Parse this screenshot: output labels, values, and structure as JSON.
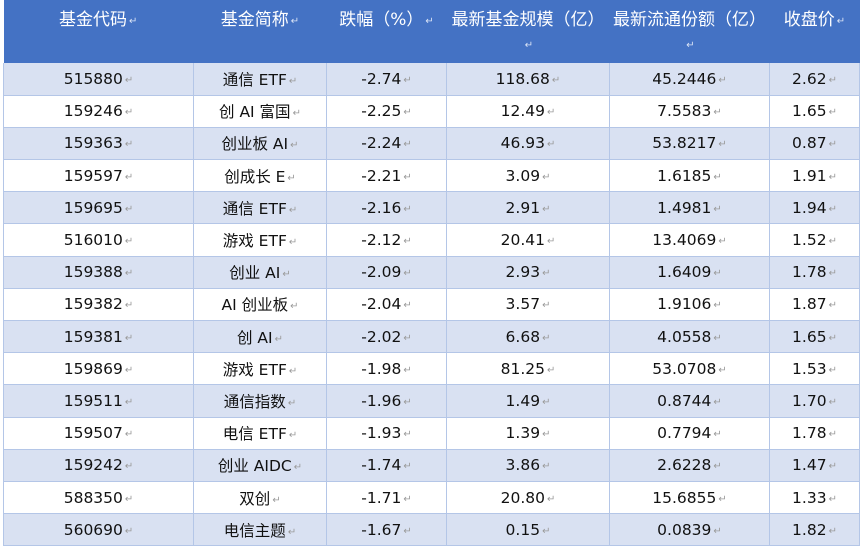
{
  "table": {
    "headers": [
      "基金代码",
      "基金简称",
      "跌幅（%）",
      "最新基金规模（亿）",
      "最新流通份额（亿）",
      "收盘价"
    ],
    "rows": [
      [
        "515880",
        "通信 ETF",
        "-2.74",
        "118.68",
        "45.2446",
        "2.62"
      ],
      [
        "159246",
        "创 AI 富国",
        "-2.25",
        "12.49",
        "7.5583",
        "1.65"
      ],
      [
        "159363",
        "创业板 AI",
        "-2.24",
        "46.93",
        "53.8217",
        "0.87"
      ],
      [
        "159597",
        "创成长 E",
        "-2.21",
        "3.09",
        "1.6185",
        "1.91"
      ],
      [
        "159695",
        "通信 ETF",
        "-2.16",
        "2.91",
        "1.4981",
        "1.94"
      ],
      [
        "516010",
        "游戏 ETF",
        "-2.12",
        "20.41",
        "13.4069",
        "1.52"
      ],
      [
        "159388",
        "创业 AI",
        "-2.09",
        "2.93",
        "1.6409",
        "1.78"
      ],
      [
        "159382",
        "AI 创业板",
        "-2.04",
        "3.57",
        "1.9106",
        "1.87"
      ],
      [
        "159381",
        "创 AI",
        "-2.02",
        "6.68",
        "4.0558",
        "1.65"
      ],
      [
        "159869",
        "游戏 ETF",
        "-1.98",
        "81.25",
        "53.0708",
        "1.53"
      ],
      [
        "159511",
        "通信指数",
        "-1.96",
        "1.49",
        "0.8744",
        "1.70"
      ],
      [
        "159507",
        "电信 ETF",
        "-1.93",
        "1.39",
        "0.7794",
        "1.78"
      ],
      [
        "159242",
        "创业 AIDC",
        "-1.74",
        "3.86",
        "2.6228",
        "1.47"
      ],
      [
        "588350",
        "双创",
        "-1.71",
        "20.80",
        "15.6855",
        "1.33"
      ],
      [
        "560690",
        "电信主题",
        "-1.67",
        "0.15",
        "0.0839",
        "1.82"
      ]
    ]
  },
  "colors": {
    "header_bg": "#4472c4",
    "header_text": "#ffffff",
    "band_row": "#d9e1f2",
    "grid_line": "#b4c6e7"
  },
  "paragraph_mark": "↵"
}
